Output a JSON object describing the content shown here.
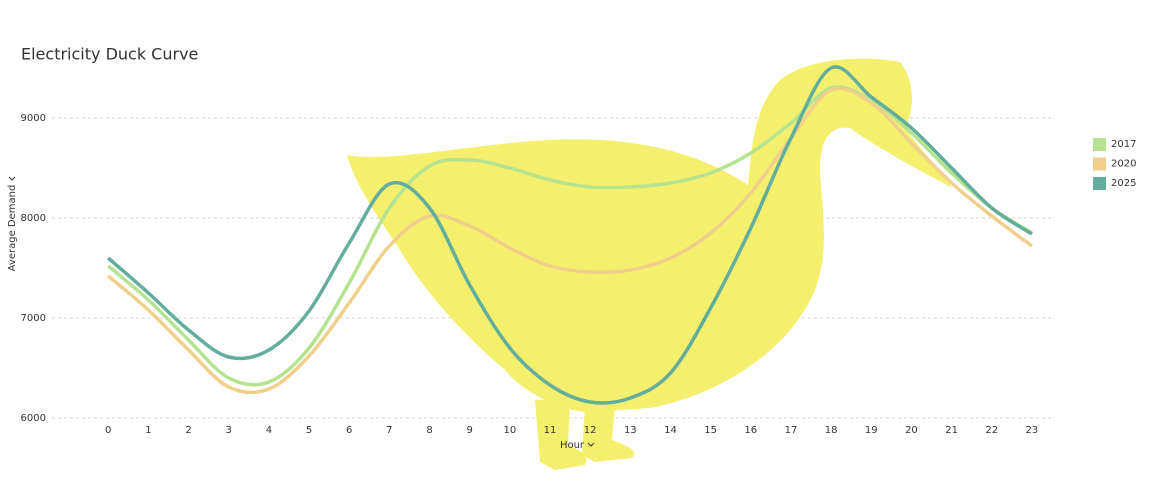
{
  "chart_data": {
    "type": "line",
    "title": "Electricity Duck Curve",
    "x_label": "Hour",
    "y_label": "Average Demand",
    "x": [
      0,
      1,
      2,
      3,
      4,
      5,
      6,
      7,
      8,
      9,
      10,
      11,
      12,
      13,
      14,
      15,
      16,
      17,
      18,
      19,
      20,
      21,
      22,
      23
    ],
    "xlim": [
      -1.5,
      23.5
    ],
    "xticks": [
      0,
      1,
      2,
      3,
      4,
      5,
      6,
      7,
      8,
      9,
      10,
      11,
      12,
      13,
      14,
      15,
      16,
      17,
      18,
      19,
      20,
      21,
      22,
      23
    ],
    "ylim": [
      6000,
      9500
    ],
    "yticks": [
      6000,
      7000,
      8000,
      9000
    ],
    "grid": true,
    "legend": "right",
    "series": [
      {
        "name": "2017",
        "color": "#b5e38f",
        "values": [
          7520,
          7180,
          6780,
          6400,
          6360,
          6700,
          7350,
          8100,
          8520,
          8580,
          8500,
          8380,
          8310,
          8310,
          8350,
          8450,
          8650,
          8950,
          9300,
          9180,
          8850,
          8450,
          8100,
          7850
        ]
      },
      {
        "name": "2020",
        "color": "#f0cf8a",
        "values": [
          7420,
          7080,
          6680,
          6310,
          6290,
          6620,
          7150,
          7720,
          8020,
          7920,
          7700,
          7520,
          7460,
          7480,
          7600,
          7850,
          8250,
          8800,
          9280,
          9150,
          8750,
          8350,
          8020,
          7720
        ]
      },
      {
        "name": "2025",
        "color": "#62ad9c",
        "values": [
          7600,
          7250,
          6880,
          6610,
          6680,
          7070,
          7750,
          8340,
          8100,
          7330,
          6700,
          6330,
          6160,
          6200,
          6450,
          7100,
          7900,
          8800,
          9500,
          9210,
          8900,
          8500,
          8100,
          7840
        ]
      }
    ]
  }
}
